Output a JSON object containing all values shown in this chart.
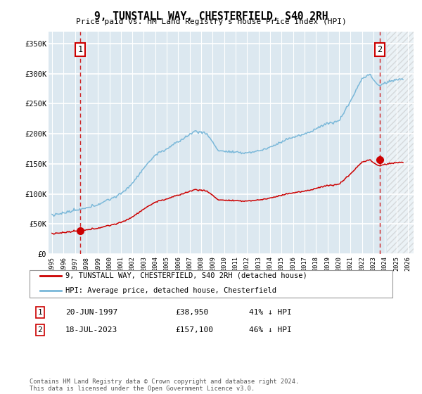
{
  "title": "9, TUNSTALL WAY, CHESTERFIELD, S40 2RH",
  "subtitle": "Price paid vs. HM Land Registry's House Price Index (HPI)",
  "legend_line1": "9, TUNSTALL WAY, CHESTERFIELD, S40 2RH (detached house)",
  "legend_line2": "HPI: Average price, detached house, Chesterfield",
  "footnote": "Contains HM Land Registry data © Crown copyright and database right 2024.\nThis data is licensed under the Open Government Licence v3.0.",
  "annotation1_label": "1",
  "annotation1_date": "20-JUN-1997",
  "annotation1_price": "£38,950",
  "annotation1_hpi": "41% ↓ HPI",
  "annotation2_label": "2",
  "annotation2_date": "18-JUL-2023",
  "annotation2_price": "£157,100",
  "annotation2_hpi": "46% ↓ HPI",
  "hpi_color": "#7ab8d9",
  "price_color": "#cc0000",
  "plot_bg": "#dce8f0",
  "grid_color": "#ffffff",
  "vline_color": "#cc0000",
  "ylim": [
    0,
    370000
  ],
  "xlim_start": 1994.7,
  "xlim_end": 2026.5,
  "marker1_x": 1997.47,
  "marker1_y": 38950,
  "marker2_x": 2023.54,
  "marker2_y": 157100,
  "vline1_x": 1997.47,
  "vline2_x": 2023.54,
  "hatch_start": 2024.17,
  "yticks": [
    0,
    50000,
    100000,
    150000,
    200000,
    250000,
    300000,
    350000
  ],
  "ytick_labels": [
    "£0",
    "£50K",
    "£100K",
    "£150K",
    "£200K",
    "£250K",
    "£300K",
    "£350K"
  ]
}
